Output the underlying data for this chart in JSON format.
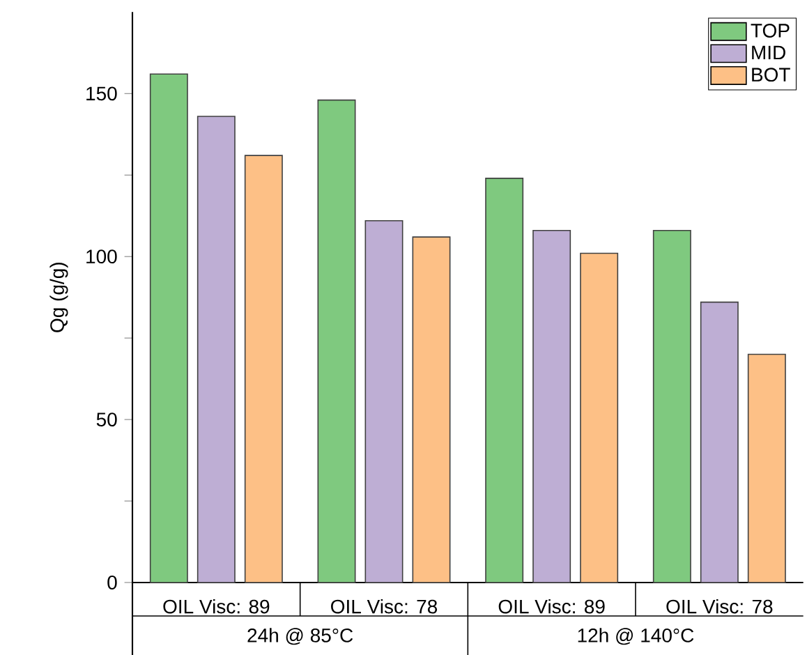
{
  "chart_data": {
    "type": "bar",
    "ylabel": "Qg (g/g)",
    "categories": [
      "OIL Visc: 89",
      "OIL Visc: 78",
      "OIL Visc: 89",
      "OIL Visc: 78"
    ],
    "annotations": [
      "24h @ 85°C",
      "12h @ 140°C"
    ],
    "series": [
      {
        "name": "TOP",
        "color": "#7fc97f",
        "values": [
          156,
          148,
          124,
          108
        ]
      },
      {
        "name": "MID",
        "color": "#beaed4",
        "values": [
          143,
          111,
          108,
          86
        ]
      },
      {
        "name": "BOT",
        "color": "#fdc086",
        "values": [
          131,
          106,
          101,
          70
        ]
      }
    ],
    "ylim": [
      0,
      175
    ],
    "yticks": [
      0,
      {
        "value": 25,
        "label": null
      },
      50,
      {
        "value": 75,
        "label": null
      },
      100,
      {
        "value": 125,
        "label": null
      },
      150
    ],
    "legend": "top right",
    "grid": false
  }
}
